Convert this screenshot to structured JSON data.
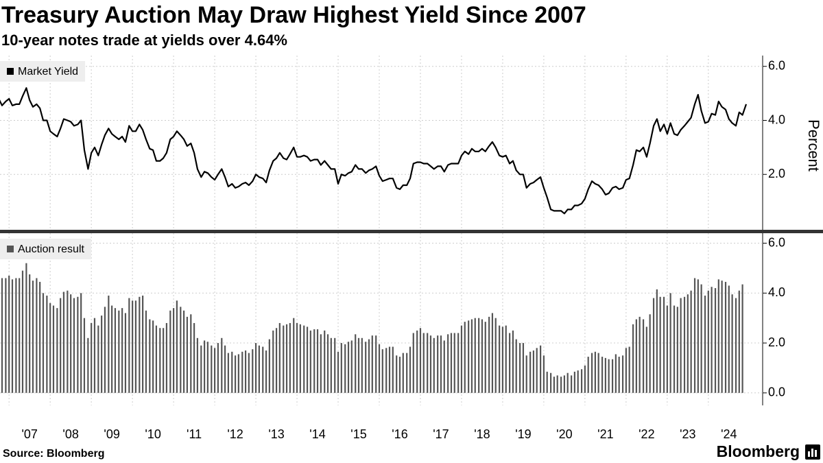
{
  "title": "Treasury Auction May Draw Highest Yield Since 2007",
  "subtitle": "10-year notes trade at yields over 4.64%",
  "source": "Source: Bloomberg",
  "brand": "Bloomberg",
  "chart_data": [
    {
      "type": "line",
      "ylabel": "Percent",
      "xlim": [
        2006.78,
        2025.32
      ],
      "ylim": [
        0,
        6.4
      ],
      "yticks": [
        {
          "value": 2,
          "label": "2.0"
        },
        {
          "value": 4,
          "label": "4.0"
        },
        {
          "value": 6,
          "label": "6.0"
        }
      ],
      "grid": true,
      "x": [
        2006.75,
        2006.83,
        2006.92,
        2007,
        2007.08,
        2007.17,
        2007.25,
        2007.33,
        2007.42,
        2007.5,
        2007.58,
        2007.67,
        2007.75,
        2007.83,
        2007.92,
        2008,
        2008.08,
        2008.17,
        2008.25,
        2008.33,
        2008.42,
        2008.5,
        2008.58,
        2008.67,
        2008.75,
        2008.83,
        2008.92,
        2009,
        2009.08,
        2009.17,
        2009.25,
        2009.33,
        2009.42,
        2009.5,
        2009.58,
        2009.67,
        2009.75,
        2009.83,
        2009.92,
        2010,
        2010.08,
        2010.17,
        2010.25,
        2010.33,
        2010.42,
        2010.5,
        2010.58,
        2010.67,
        2010.75,
        2010.83,
        2010.92,
        2011,
        2011.08,
        2011.17,
        2011.25,
        2011.33,
        2011.42,
        2011.5,
        2011.58,
        2011.67,
        2011.75,
        2011.83,
        2011.92,
        2012,
        2012.08,
        2012.17,
        2012.25,
        2012.33,
        2012.42,
        2012.5,
        2012.58,
        2012.67,
        2012.75,
        2012.83,
        2012.92,
        2013,
        2013.08,
        2013.17,
        2013.25,
        2013.33,
        2013.42,
        2013.5,
        2013.58,
        2013.67,
        2013.75,
        2013.83,
        2013.92,
        2014,
        2014.08,
        2014.17,
        2014.25,
        2014.33,
        2014.42,
        2014.5,
        2014.58,
        2014.67,
        2014.75,
        2014.83,
        2014.92,
        2015,
        2015.08,
        2015.17,
        2015.25,
        2015.33,
        2015.42,
        2015.5,
        2015.58,
        2015.67,
        2015.75,
        2015.83,
        2015.92,
        2016,
        2016.08,
        2016.17,
        2016.25,
        2016.33,
        2016.42,
        2016.5,
        2016.58,
        2016.67,
        2016.75,
        2016.83,
        2016.92,
        2017,
        2017.08,
        2017.17,
        2017.25,
        2017.33,
        2017.42,
        2017.5,
        2017.58,
        2017.67,
        2017.75,
        2017.83,
        2017.92,
        2018,
        2018.08,
        2018.17,
        2018.25,
        2018.33,
        2018.42,
        2018.5,
        2018.58,
        2018.67,
        2018.75,
        2018.83,
        2018.92,
        2019,
        2019.08,
        2019.17,
        2019.25,
        2019.33,
        2019.42,
        2019.5,
        2019.58,
        2019.67,
        2019.75,
        2019.83,
        2019.92,
        2020,
        2020.08,
        2020.17,
        2020.25,
        2020.33,
        2020.42,
        2020.5,
        2020.58,
        2020.67,
        2020.75,
        2020.83,
        2020.92,
        2021,
        2021.08,
        2021.17,
        2021.25,
        2021.33,
        2021.42,
        2021.5,
        2021.58,
        2021.67,
        2021.75,
        2021.83,
        2021.92,
        2022,
        2022.08,
        2022.17,
        2022.25,
        2022.33,
        2022.42,
        2022.5,
        2022.58,
        2022.67,
        2022.75,
        2022.83,
        2022.92,
        2023,
        2023.08,
        2023.17,
        2023.25,
        2023.33,
        2023.42,
        2023.5,
        2023.58,
        2023.67,
        2023.75,
        2023.83,
        2023.92,
        2024,
        2024.08,
        2024.17,
        2024.25,
        2024.33,
        2024.42,
        2024.5,
        2024.58,
        2024.67,
        2024.75,
        2024.83,
        2024.92
      ],
      "series": [
        {
          "name": "Market Yield",
          "color": "#000000",
          "values": [
            4.8,
            4.55,
            4.7,
            4.8,
            4.55,
            4.6,
            4.6,
            4.9,
            5.2,
            4.75,
            4.5,
            4.6,
            4.45,
            4.0,
            4.0,
            3.6,
            3.5,
            3.4,
            3.7,
            4.05,
            4.0,
            3.95,
            3.8,
            3.85,
            4.0,
            2.9,
            2.2,
            2.8,
            3.0,
            2.7,
            3.1,
            3.45,
            3.7,
            3.5,
            3.4,
            3.3,
            3.4,
            3.2,
            3.8,
            3.6,
            3.6,
            3.85,
            3.65,
            3.3,
            2.95,
            2.9,
            2.5,
            2.5,
            2.6,
            2.8,
            3.3,
            3.4,
            3.6,
            3.45,
            3.3,
            3.05,
            3.15,
            2.8,
            2.2,
            1.9,
            2.1,
            2.05,
            1.9,
            1.8,
            2.0,
            2.2,
            1.9,
            1.55,
            1.65,
            1.5,
            1.55,
            1.65,
            1.7,
            1.6,
            1.75,
            2.0,
            1.9,
            1.85,
            1.7,
            2.15,
            2.5,
            2.6,
            2.8,
            2.6,
            2.55,
            2.75,
            3.0,
            2.65,
            2.65,
            2.7,
            2.65,
            2.5,
            2.55,
            2.55,
            2.35,
            2.5,
            2.35,
            2.2,
            2.2,
            1.65,
            2.0,
            1.95,
            2.05,
            2.1,
            2.35,
            2.2,
            2.2,
            2.05,
            2.15,
            2.2,
            2.3,
            1.95,
            1.75,
            1.8,
            1.85,
            1.85,
            1.5,
            1.45,
            1.6,
            1.6,
            1.85,
            2.4,
            2.45,
            2.45,
            2.4,
            2.4,
            2.3,
            2.2,
            2.3,
            2.3,
            2.1,
            2.35,
            2.4,
            2.4,
            2.4,
            2.7,
            2.85,
            2.75,
            2.95,
            2.85,
            2.85,
            2.95,
            2.85,
            3.05,
            3.2,
            3.0,
            2.7,
            2.65,
            2.7,
            2.4,
            2.5,
            2.15,
            2.0,
            2.0,
            1.5,
            1.65,
            1.7,
            1.8,
            1.9,
            1.5,
            1.15,
            0.7,
            0.65,
            0.65,
            0.65,
            0.55,
            0.7,
            0.7,
            0.85,
            0.85,
            0.92,
            1.1,
            1.45,
            1.75,
            1.65,
            1.6,
            1.45,
            1.25,
            1.3,
            1.5,
            1.55,
            1.45,
            1.5,
            1.8,
            1.85,
            2.35,
            2.9,
            2.85,
            3.0,
            2.65,
            3.15,
            3.8,
            4.05,
            3.6,
            3.85,
            3.5,
            3.9,
            3.5,
            3.45,
            3.65,
            3.8,
            3.95,
            4.1,
            4.6,
            4.95,
            4.35,
            3.9,
            3.95,
            4.25,
            4.2,
            4.7,
            4.5,
            4.4,
            4.05,
            3.9,
            3.8,
            4.3,
            4.2,
            4.6
          ]
        }
      ]
    },
    {
      "type": "bar",
      "xlim": [
        2006.78,
        2025.32
      ],
      "ylim": [
        -0.5,
        6.4
      ],
      "yticks": [
        {
          "value": 0,
          "label": "0.0"
        },
        {
          "value": 2,
          "label": "2.0"
        },
        {
          "value": 4,
          "label": "4.0"
        },
        {
          "value": 6,
          "label": "6.0"
        }
      ],
      "xticks": [
        {
          "value": 2007,
          "label": "'07"
        },
        {
          "value": 2008,
          "label": "'08"
        },
        {
          "value": 2009,
          "label": "'09"
        },
        {
          "value": 2010,
          "label": "'10"
        },
        {
          "value": 2011,
          "label": "'11"
        },
        {
          "value": 2012,
          "label": "'12"
        },
        {
          "value": 2013,
          "label": "'13"
        },
        {
          "value": 2014,
          "label": "'14"
        },
        {
          "value": 2015,
          "label": "'15"
        },
        {
          "value": 2016,
          "label": "'16"
        },
        {
          "value": 2017,
          "label": "'17"
        },
        {
          "value": 2018,
          "label": "'18"
        },
        {
          "value": 2019,
          "label": "'19"
        },
        {
          "value": 2020,
          "label": "'20"
        },
        {
          "value": 2021,
          "label": "'21"
        },
        {
          "value": 2022,
          "label": "'22"
        },
        {
          "value": 2023,
          "label": "'23"
        },
        {
          "value": 2024,
          "label": "'24"
        }
      ],
      "grid": true,
      "x": [
        2006.83,
        2006.92,
        2007,
        2007.08,
        2007.17,
        2007.25,
        2007.33,
        2007.42,
        2007.5,
        2007.58,
        2007.67,
        2007.75,
        2007.83,
        2007.92,
        2008,
        2008.08,
        2008.17,
        2008.25,
        2008.33,
        2008.42,
        2008.5,
        2008.58,
        2008.67,
        2008.75,
        2008.83,
        2008.92,
        2009,
        2009.08,
        2009.17,
        2009.25,
        2009.33,
        2009.42,
        2009.5,
        2009.58,
        2009.67,
        2009.75,
        2009.83,
        2009.92,
        2010,
        2010.08,
        2010.17,
        2010.25,
        2010.33,
        2010.42,
        2010.5,
        2010.58,
        2010.67,
        2010.75,
        2010.83,
        2010.92,
        2011,
        2011.08,
        2011.17,
        2011.25,
        2011.33,
        2011.42,
        2011.5,
        2011.58,
        2011.67,
        2011.75,
        2011.83,
        2011.92,
        2012,
        2012.08,
        2012.17,
        2012.25,
        2012.33,
        2012.42,
        2012.5,
        2012.58,
        2012.67,
        2012.75,
        2012.83,
        2012.92,
        2013,
        2013.08,
        2013.17,
        2013.25,
        2013.33,
        2013.42,
        2013.5,
        2013.58,
        2013.67,
        2013.75,
        2013.83,
        2013.92,
        2014,
        2014.08,
        2014.17,
        2014.25,
        2014.33,
        2014.42,
        2014.5,
        2014.58,
        2014.67,
        2014.75,
        2014.83,
        2014.92,
        2015,
        2015.08,
        2015.17,
        2015.25,
        2015.33,
        2015.42,
        2015.5,
        2015.58,
        2015.67,
        2015.75,
        2015.83,
        2015.92,
        2016,
        2016.08,
        2016.17,
        2016.25,
        2016.33,
        2016.42,
        2016.5,
        2016.58,
        2016.67,
        2016.75,
        2016.83,
        2016.92,
        2017,
        2017.08,
        2017.17,
        2017.25,
        2017.33,
        2017.42,
        2017.5,
        2017.58,
        2017.67,
        2017.75,
        2017.83,
        2017.92,
        2018,
        2018.08,
        2018.17,
        2018.25,
        2018.33,
        2018.42,
        2018.5,
        2018.58,
        2018.67,
        2018.75,
        2018.83,
        2018.92,
        2019,
        2019.08,
        2019.17,
        2019.25,
        2019.33,
        2019.42,
        2019.5,
        2019.58,
        2019.67,
        2019.75,
        2019.83,
        2019.92,
        2020,
        2020.08,
        2020.17,
        2020.25,
        2020.33,
        2020.42,
        2020.5,
        2020.58,
        2020.67,
        2020.75,
        2020.83,
        2020.92,
        2021,
        2021.08,
        2021.17,
        2021.25,
        2021.33,
        2021.42,
        2021.5,
        2021.58,
        2021.67,
        2021.75,
        2021.83,
        2021.92,
        2022,
        2022.08,
        2022.17,
        2022.25,
        2022.33,
        2022.42,
        2022.5,
        2022.58,
        2022.67,
        2022.75,
        2022.83,
        2022.92,
        2023,
        2023.08,
        2023.17,
        2023.25,
        2023.33,
        2023.42,
        2023.5,
        2023.58,
        2023.67,
        2023.75,
        2023.83,
        2023.92,
        2024,
        2024.08,
        2024.17,
        2024.25,
        2024.33,
        2024.42,
        2024.5,
        2024.58,
        2024.67,
        2024.75,
        2024.83
      ],
      "series": [
        {
          "name": "Auction result",
          "color": "#555555",
          "values": [
            4.6,
            4.6,
            4.7,
            4.55,
            4.6,
            4.6,
            4.9,
            5.2,
            4.75,
            4.5,
            4.6,
            4.45,
            4.0,
            3.9,
            3.6,
            3.5,
            3.4,
            3.8,
            4.05,
            4.1,
            3.95,
            3.8,
            3.85,
            4.0,
            3.0,
            2.2,
            2.8,
            3.0,
            2.7,
            3.1,
            3.45,
            3.9,
            3.5,
            3.4,
            3.3,
            3.4,
            3.2,
            3.8,
            3.7,
            3.7,
            3.85,
            3.9,
            3.3,
            2.95,
            2.9,
            2.7,
            2.6,
            2.6,
            2.8,
            3.3,
            3.4,
            3.7,
            3.45,
            3.3,
            3.05,
            3.15,
            2.8,
            2.2,
            1.9,
            2.1,
            2.05,
            1.9,
            1.8,
            2.0,
            2.2,
            1.9,
            1.6,
            1.65,
            1.5,
            1.55,
            1.65,
            1.7,
            1.6,
            1.75,
            2.0,
            1.9,
            1.85,
            1.7,
            2.15,
            2.5,
            2.6,
            2.8,
            2.7,
            2.75,
            2.8,
            3.0,
            2.8,
            2.75,
            2.7,
            2.65,
            2.5,
            2.55,
            2.55,
            2.35,
            2.5,
            2.35,
            2.2,
            2.2,
            1.65,
            2.0,
            1.95,
            2.05,
            2.1,
            2.35,
            2.2,
            2.2,
            2.05,
            2.15,
            2.3,
            2.3,
            1.95,
            1.75,
            1.8,
            1.85,
            1.85,
            1.5,
            1.45,
            1.6,
            1.6,
            1.85,
            2.4,
            2.5,
            2.6,
            2.4,
            2.4,
            2.3,
            2.2,
            2.3,
            2.3,
            2.1,
            2.35,
            2.4,
            2.4,
            2.4,
            2.7,
            2.85,
            2.9,
            2.95,
            3.0,
            3.0,
            2.95,
            2.85,
            3.05,
            3.2,
            3.0,
            2.7,
            2.65,
            2.7,
            2.4,
            2.5,
            2.15,
            2.0,
            2.0,
            1.5,
            1.65,
            1.7,
            1.8,
            1.9,
            1.5,
            0.85,
            0.8,
            0.65,
            0.7,
            0.65,
            0.7,
            0.8,
            0.7,
            0.85,
            0.9,
            0.95,
            1.1,
            1.45,
            1.6,
            1.65,
            1.6,
            1.45,
            1.4,
            1.35,
            1.35,
            1.55,
            1.45,
            1.5,
            1.8,
            1.85,
            2.75,
            2.95,
            3.05,
            2.95,
            2.65,
            3.15,
            3.8,
            4.15,
            3.85,
            3.85,
            3.5,
            4.0,
            3.5,
            3.45,
            3.8,
            3.85,
            3.95,
            4.1,
            4.6,
            4.55,
            4.35,
            3.9,
            4.1,
            4.25,
            4.2,
            4.55,
            4.5,
            4.45,
            4.3,
            3.95,
            3.8,
            4.1,
            4.35
          ]
        }
      ]
    }
  ]
}
